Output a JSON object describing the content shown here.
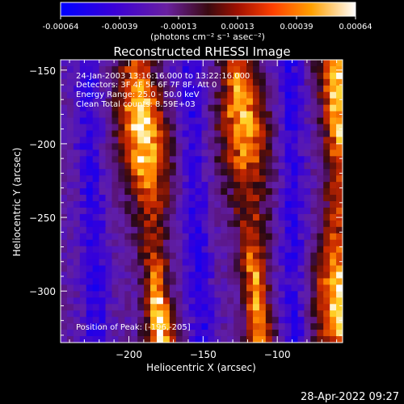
{
  "colorbar": {
    "tick_labels": [
      "-0.00064",
      "-0.00039",
      "-0.00013",
      "0.00013",
      "0.00039",
      "0.00064"
    ],
    "units": "(photons cm⁻² s⁻¹ asec⁻²)",
    "range": [
      -0.00064,
      0.00064
    ]
  },
  "header": {
    "title": "Reconstructed RHESSI Image"
  },
  "info": {
    "time": "24-Jan-2003 13:16:16.000 to 13:22:16.000",
    "detectors": "Detectors: 3F 4F 5F 6F 7F 8F, Att 0",
    "energy": "Energy Range: 25.0 - 50.0 keV",
    "clean": "Clean     Total counts: 8.59E+03",
    "peak": "Position of Peak: [-196,-205]"
  },
  "footer": {
    "timestamp": "28-Apr-2022 09:27"
  },
  "chart_data": {
    "type": "heatmap",
    "title": "Reconstructed RHESSI Image",
    "xlabel": "Heliocentric X (arcsec)",
    "ylabel": "Heliocentric Y (arcsec)",
    "xlim": [
      -246,
      -56
    ],
    "ylim": [
      -335,
      -143
    ],
    "x_ticks": [
      -200,
      -150,
      -100
    ],
    "y_ticks": [
      -150,
      -200,
      -250,
      -300
    ],
    "x_tick_labels": [
      "−200",
      "−150",
      "−100"
    ],
    "y_tick_labels": [
      "−150",
      "−200",
      "−250",
      "−300"
    ],
    "ridges": [
      {
        "x_at_top": -195,
        "x_at_bottom": -178,
        "peak": 0.0006
      },
      {
        "x_at_top": -126,
        "x_at_bottom": -112,
        "peak": 0.0005
      },
      {
        "x_at_top": -60,
        "x_at_bottom": -58,
        "peak": 0.00055
      }
    ],
    "troughs": [
      {
        "x_at_top": -228,
        "x_at_bottom": -222
      },
      {
        "x_at_top": -160,
        "x_at_bottom": -150
      },
      {
        "x_at_top": -92,
        "x_at_bottom": -88
      }
    ],
    "peak_position": [
      -196,
      -205
    ]
  }
}
